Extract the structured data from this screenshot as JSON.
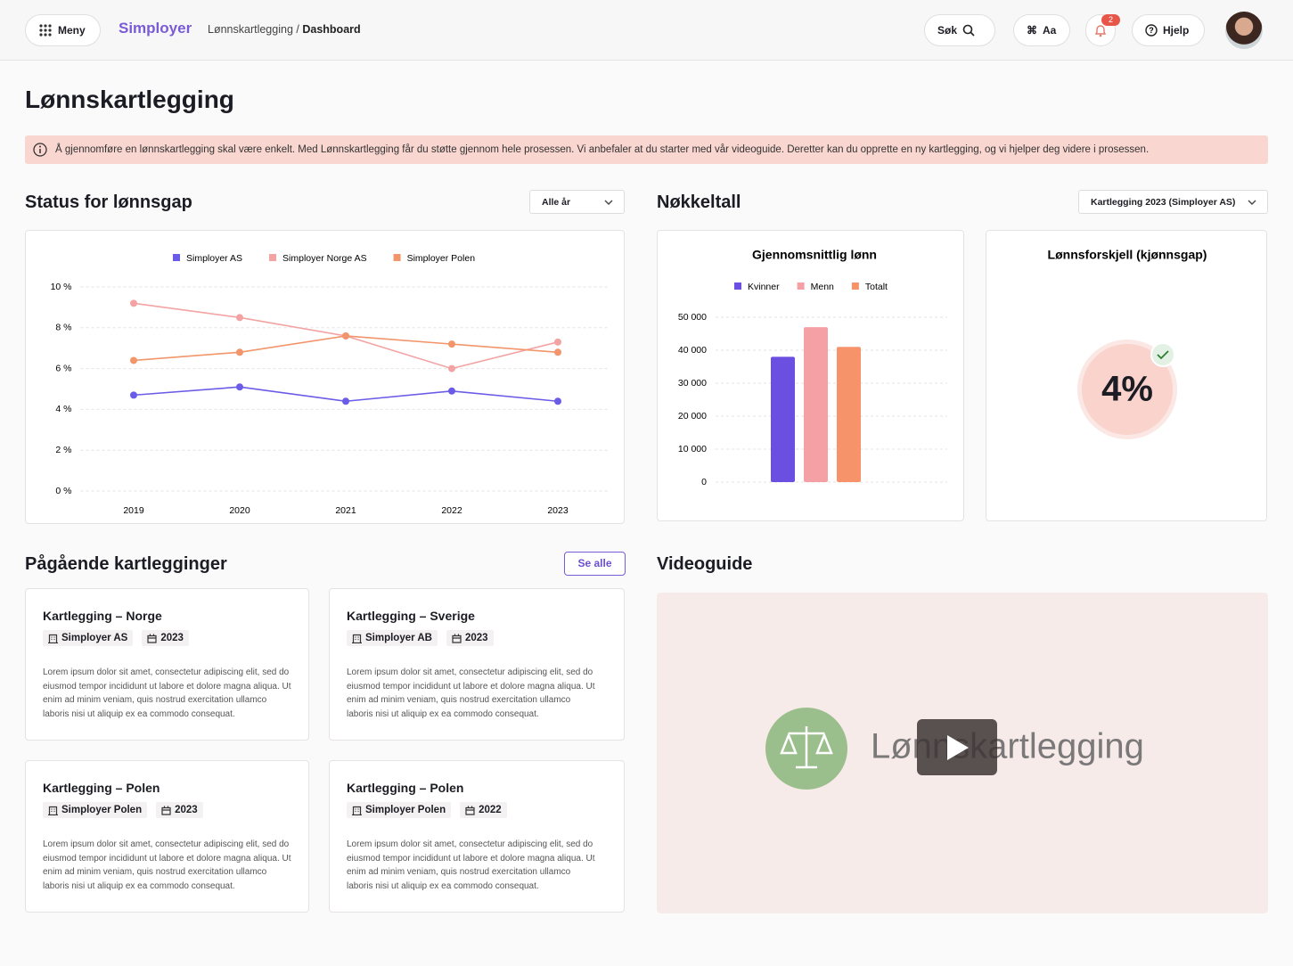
{
  "header": {
    "menu": "Meny",
    "brand": "Simployer",
    "breadcrumb": [
      "Lønnskartlegging",
      "Dashboard"
    ],
    "breadcrumb_separator": "/",
    "search": "Søk",
    "font_button": "Aa",
    "notifications": 2,
    "help": "Hjelp"
  },
  "page": {
    "title": "Lønnskartlegging",
    "info": "Å gjennomføre en lønnskartlegging skal være enkelt. Med Lønnskartlegging får du støtte gjennom hele prosessen. Vi anbefaler at du starter med vår videoguide. Deretter kan du opprette en ny kartlegging, og vi hjelper deg videre i prosessen."
  },
  "status": {
    "title": "Status for lønnsgap",
    "filter": "Alle år"
  },
  "key_figures": {
    "title": "Nøkkeltall",
    "filter": "Kartlegging 2023 (Simployer AS)",
    "gap": {
      "title": "Lønnsforskjell (kjønnsgap)",
      "value": 4,
      "value_label": "4%"
    }
  },
  "chart_data": [
    {
      "type": "line",
      "categories": [
        "2019",
        "2020",
        "2021",
        "2022",
        "2023"
      ],
      "series": [
        {
          "name": "Simployer AS",
          "color": "#6b5ce7",
          "values": [
            4.7,
            5.1,
            4.4,
            4.9,
            4.4
          ]
        },
        {
          "name": "Simployer Norge AS",
          "color": "#f4a3a3",
          "values": [
            9.2,
            8.5,
            7.6,
            6.0,
            7.3
          ]
        },
        {
          "name": "Simployer Polen",
          "color": "#f2956b",
          "values": [
            6.4,
            6.8,
            7.6,
            7.2,
            6.8
          ]
        }
      ],
      "ylim": [
        0,
        10
      ],
      "yticks": [
        {
          "value": 0,
          "label": "0 %"
        },
        {
          "value": 2,
          "label": "2 %"
        },
        {
          "value": 4,
          "label": "4 %"
        },
        {
          "value": 6,
          "label": "6 %"
        },
        {
          "value": 8,
          "label": "8 %"
        },
        {
          "value": 10,
          "label": "10 %"
        }
      ],
      "grid": true,
      "legend": "top"
    },
    {
      "type": "bar",
      "title": "Gjennomsnittlig lønn",
      "categories": [
        null
      ],
      "series": [
        {
          "name": "Kvinner",
          "color": "#6a4fe0",
          "values": [
            38000
          ]
        },
        {
          "name": "Menn",
          "color": "#f5a0a5",
          "values": [
            47000
          ]
        },
        {
          "name": "Totalt",
          "color": "#f7936a",
          "values": [
            41000
          ]
        }
      ],
      "ylim": [
        0,
        50000
      ],
      "yticks": [
        0,
        {
          "value": 10000,
          "label": "10 000"
        },
        {
          "value": 20000,
          "label": "20 000"
        },
        {
          "value": 30000,
          "label": "30 000"
        },
        {
          "value": 40000,
          "label": "40 000"
        },
        {
          "value": 50000,
          "label": "50 000"
        }
      ],
      "grid": true,
      "legend": "top"
    }
  ],
  "ongoing": {
    "title": "Pågående kartlegginger",
    "see_all": "Se alle",
    "cards": [
      {
        "title": "Kartlegging – Norge",
        "company": "Simployer AS",
        "year": "2023",
        "text": "Lorem ipsum dolor sit amet, consectetur adipiscing elit, sed do eiusmod tempor incididunt ut labore et dolore magna aliqua. Ut enim ad minim veniam, quis nostrud exercitation ullamco laboris nisi ut aliquip ex ea commodo consequat."
      },
      {
        "title": "Kartlegging – Sverige",
        "company": "Simployer AB",
        "year": "2023",
        "text": "Lorem ipsum dolor sit amet, consectetur adipiscing elit, sed do eiusmod tempor incididunt ut labore et dolore magna aliqua. Ut enim ad minim veniam, quis nostrud exercitation ullamco laboris nisi ut aliquip ex ea commodo consequat."
      },
      {
        "title": "Kartlegging – Polen",
        "company": "Simployer Polen",
        "year": "2023",
        "text": "Lorem ipsum dolor sit amet, consectetur adipiscing elit, sed do eiusmod tempor incididunt ut labore et dolore magna aliqua. Ut enim ad minim veniam, quis nostrud exercitation ullamco laboris nisi ut aliquip ex ea commodo consequat."
      },
      {
        "title": "Kartlegging – Polen",
        "company": "Simployer Polen",
        "year": "2022",
        "text": "Lorem ipsum dolor sit amet, consectetur adipiscing elit, sed do eiusmod tempor incididunt ut labore et dolore magna aliqua. Ut enim ad minim veniam, quis nostrud exercitation ullamco laboris nisi ut aliquip ex ea commodo consequat."
      }
    ]
  },
  "video": {
    "title": "Videoguide",
    "caption": "Lønnskartlegging"
  }
}
